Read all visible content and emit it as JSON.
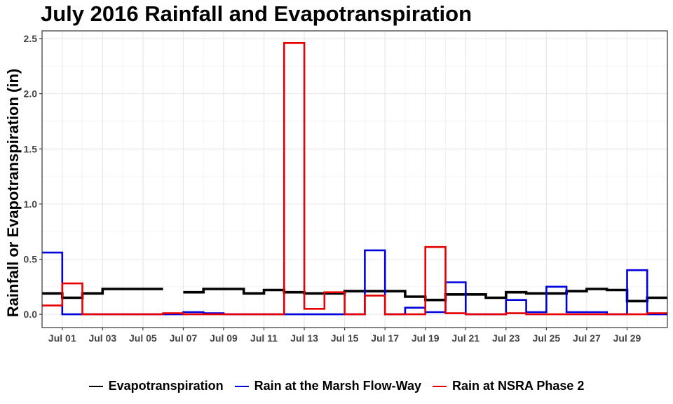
{
  "chart_data": {
    "type": "line",
    "step": true,
    "title": "July 2016 Rainfall and Evapotranspiration",
    "xlabel": "",
    "ylabel": "Rainfall or Evapotranspiration (in)",
    "xlim": [
      "2016-06-30",
      "2016-07-31"
    ],
    "ylim": [
      -0.12,
      2.57
    ],
    "y_ticks": [
      0.0,
      0.5,
      1.0,
      1.5,
      2.0,
      2.5
    ],
    "y_tick_labels": [
      "0.0",
      "0.5",
      "1.0",
      "1.5",
      "2.0",
      "2.5"
    ],
    "x_ticks": [
      "2016-07-01",
      "2016-07-03",
      "2016-07-05",
      "2016-07-07",
      "2016-07-09",
      "2016-07-11",
      "2016-07-13",
      "2016-07-15",
      "2016-07-17",
      "2016-07-19",
      "2016-07-21",
      "2016-07-23",
      "2016-07-25",
      "2016-07-27",
      "2016-07-29"
    ],
    "x_tick_labels": [
      "Jul 01",
      "Jul 03",
      "Jul 05",
      "Jul 07",
      "Jul 09",
      "Jul 11",
      "Jul 13",
      "Jul 15",
      "Jul 17",
      "Jul 19",
      "Jul 21",
      "Jul 23",
      "Jul 25",
      "Jul 27",
      "Jul 29"
    ],
    "grid": true,
    "legend_position": "bottom",
    "series": [
      {
        "name": "Evapotranspiration",
        "color": "#000000",
        "x": [
          "2016-06-30",
          "2016-07-01",
          "2016-07-02",
          "2016-07-03",
          "2016-07-04",
          "2016-07-05",
          "2016-07-06",
          "2016-07-07",
          "2016-07-08",
          "2016-07-09",
          "2016-07-10",
          "2016-07-11",
          "2016-07-12",
          "2016-07-13",
          "2016-07-14",
          "2016-07-15",
          "2016-07-16",
          "2016-07-17",
          "2016-07-18",
          "2016-07-19",
          "2016-07-20",
          "2016-07-21",
          "2016-07-22",
          "2016-07-23",
          "2016-07-24",
          "2016-07-25",
          "2016-07-26",
          "2016-07-27",
          "2016-07-28",
          "2016-07-29",
          "2016-07-30"
        ],
        "values": [
          0.19,
          0.15,
          0.19,
          0.23,
          0.23,
          0.23,
          null,
          0.2,
          0.23,
          0.23,
          0.19,
          0.22,
          0.2,
          0.19,
          0.19,
          0.21,
          0.21,
          0.21,
          0.16,
          0.13,
          0.18,
          0.18,
          0.15,
          0.2,
          0.19,
          0.19,
          0.21,
          0.23,
          0.22,
          0.12,
          0.15
        ]
      },
      {
        "name": "Rain at the Marsh Flow-Way",
        "color": "#0000dd",
        "x": [
          "2016-06-30",
          "2016-07-01",
          "2016-07-02",
          "2016-07-03",
          "2016-07-04",
          "2016-07-05",
          "2016-07-06",
          "2016-07-07",
          "2016-07-08",
          "2016-07-09",
          "2016-07-10",
          "2016-07-11",
          "2016-07-12",
          "2016-07-13",
          "2016-07-14",
          "2016-07-15",
          "2016-07-16",
          "2016-07-17",
          "2016-07-18",
          "2016-07-19",
          "2016-07-20",
          "2016-07-21",
          "2016-07-22",
          "2016-07-23",
          "2016-07-24",
          "2016-07-25",
          "2016-07-26",
          "2016-07-27",
          "2016-07-28",
          "2016-07-29",
          "2016-07-30"
        ],
        "values": [
          0.56,
          0.0,
          0.0,
          0.0,
          0.0,
          0.0,
          0.0,
          0.02,
          0.01,
          0.0,
          0.0,
          0.0,
          0.0,
          0.0,
          0.0,
          0.0,
          0.58,
          0.0,
          0.06,
          0.02,
          0.29,
          0.0,
          0.0,
          0.13,
          0.02,
          0.25,
          0.02,
          0.02,
          0.0,
          0.4,
          0.0
        ]
      },
      {
        "name": "Rain at NSRA Phase 2",
        "color": "#e60000",
        "x": [
          "2016-06-30",
          "2016-07-01",
          "2016-07-02",
          "2016-07-03",
          "2016-07-04",
          "2016-07-05",
          "2016-07-06",
          "2016-07-07",
          "2016-07-08",
          "2016-07-09",
          "2016-07-10",
          "2016-07-11",
          "2016-07-12",
          "2016-07-13",
          "2016-07-14",
          "2016-07-15",
          "2016-07-16",
          "2016-07-17",
          "2016-07-18",
          "2016-07-19",
          "2016-07-20",
          "2016-07-21",
          "2016-07-22",
          "2016-07-23",
          "2016-07-24",
          "2016-07-25",
          "2016-07-26",
          "2016-07-27",
          "2016-07-28",
          "2016-07-29",
          "2016-07-30"
        ],
        "values": [
          0.08,
          0.28,
          0.0,
          0.0,
          0.0,
          0.0,
          0.01,
          0.0,
          0.0,
          0.0,
          0.0,
          0.0,
          2.46,
          0.05,
          0.2,
          0.0,
          0.17,
          0.0,
          0.0,
          0.61,
          0.01,
          0.0,
          0.0,
          0.01,
          0.0,
          0.0,
          0.0,
          0.0,
          0.0,
          0.0,
          0.01
        ]
      }
    ]
  }
}
